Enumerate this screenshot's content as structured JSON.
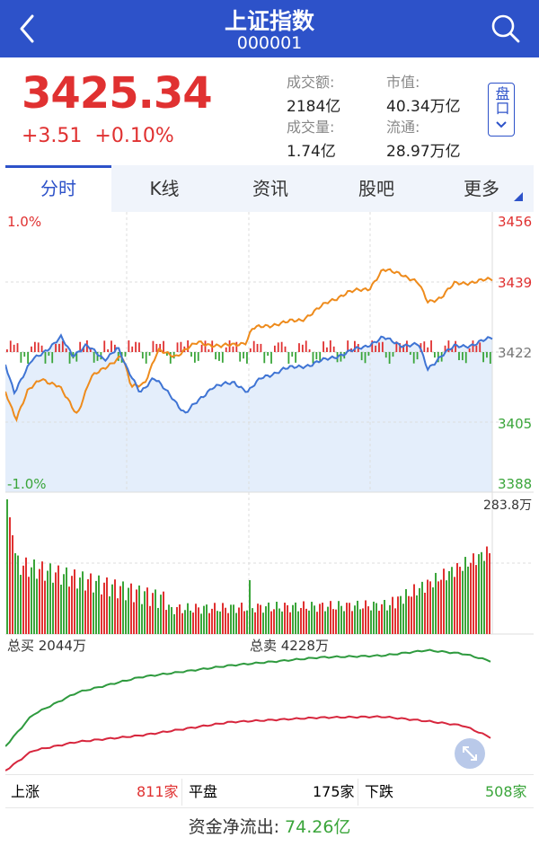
{
  "header": {
    "title": "上证指数",
    "code": "000001"
  },
  "quote": {
    "price": "3425.34",
    "change": "+3.51",
    "change_pct": "+0.10%",
    "stats": [
      {
        "key": "成交额:",
        "value": "2184亿"
      },
      {
        "key": "市值:",
        "value": "40.34万亿"
      },
      {
        "key": "成交量:",
        "value": "1.74亿"
      },
      {
        "key": "流通:",
        "value": "28.97万亿"
      }
    ],
    "pankou_label": "盘口"
  },
  "tabs": [
    "分时",
    "K线",
    "资讯",
    "股吧",
    "更多"
  ],
  "intraday": {
    "left_top": "1.0%",
    "left_bottom": "-1.0%",
    "right_labels": [
      "3456",
      "3439",
      "3422",
      "3405",
      "3388"
    ],
    "volume_max": "283.8万",
    "total_buy": "总买 2044万",
    "total_sell": "总卖 4228万"
  },
  "breadth": {
    "up_label": "上涨",
    "up_value": "811家",
    "flat_label": "平盘",
    "flat_value": "175家",
    "down_label": "下跌",
    "down_value": "508家"
  },
  "fund_flow": {
    "label": "资金净流出: ",
    "value": "74.26亿"
  },
  "colors": {
    "brand": "#2d52c9",
    "up": "#e03131",
    "down": "#3aa53a",
    "avg_line": "#ee8b1c",
    "price_line": "#3f74d4"
  }
}
